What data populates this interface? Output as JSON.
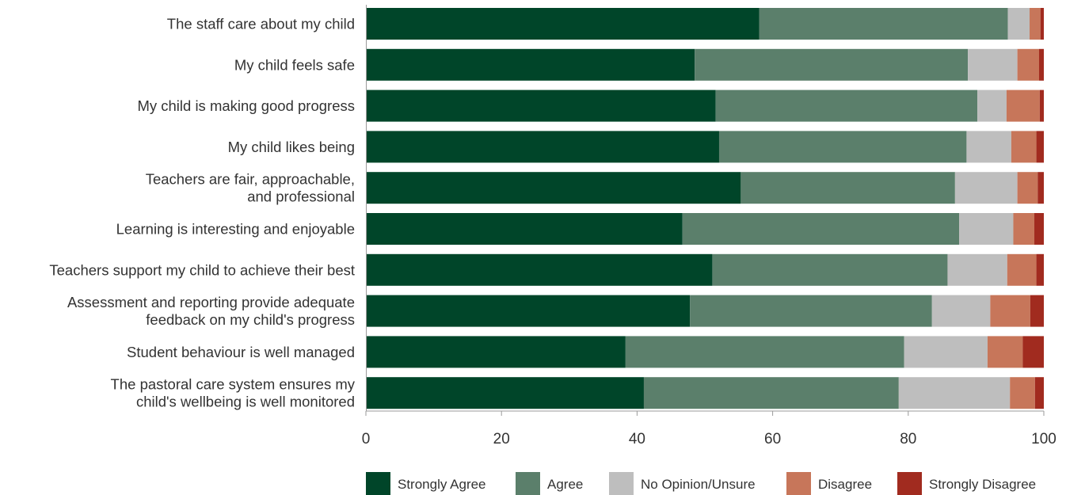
{
  "chart_data": {
    "type": "bar",
    "orientation": "horizontal",
    "stacked": true,
    "categories": [
      [
        "The staff care about my child"
      ],
      [
        "My child feels safe"
      ],
      [
        "My child is making good progress"
      ],
      [
        "My child likes being"
      ],
      [
        "Teachers are fair, approachable,",
        "and professional"
      ],
      [
        "Learning is interesting and enjoyable"
      ],
      [
        "Teachers support my child to achieve their best"
      ],
      [
        "Assessment and reporting provide adequate",
        "feedback on my child's progress"
      ],
      [
        "Student behaviour is well managed"
      ],
      [
        "The pastoral care system ensures my",
        "child's wellbeing is well monitored"
      ]
    ],
    "series": [
      {
        "name": "Strongly Agree",
        "color": "#004529",
        "values": [
          58.0,
          48.5,
          51.6,
          52.1,
          55.3,
          46.7,
          51.1,
          47.8,
          38.3,
          41.0
        ]
      },
      {
        "name": "Agree",
        "color": "#5b7f6b",
        "values": [
          36.7,
          40.3,
          38.6,
          36.5,
          31.6,
          40.8,
          34.7,
          35.7,
          41.1,
          37.6
        ]
      },
      {
        "name": "No Opinion/Unsure",
        "color": "#bebebe",
        "values": [
          3.2,
          7.3,
          4.3,
          6.6,
          9.2,
          8.0,
          8.8,
          8.6,
          12.3,
          16.4
        ]
      },
      {
        "name": "Disagree",
        "color": "#c7765a",
        "values": [
          1.6,
          3.2,
          4.9,
          3.7,
          3.0,
          3.1,
          4.3,
          5.9,
          5.2,
          3.7
        ]
      },
      {
        "name": "Strongly Disagree",
        "color": "#a12b1f",
        "values": [
          0.5,
          0.7,
          0.6,
          1.1,
          0.9,
          1.4,
          1.1,
          2.0,
          3.1,
          1.3
        ]
      }
    ],
    "xlim": [
      0,
      100
    ],
    "xticks": [
      "0",
      "20",
      "40",
      "60",
      "80",
      "100"
    ],
    "title": "",
    "xlabel": "",
    "ylabel": "",
    "grid": false,
    "legend": "bottom"
  }
}
